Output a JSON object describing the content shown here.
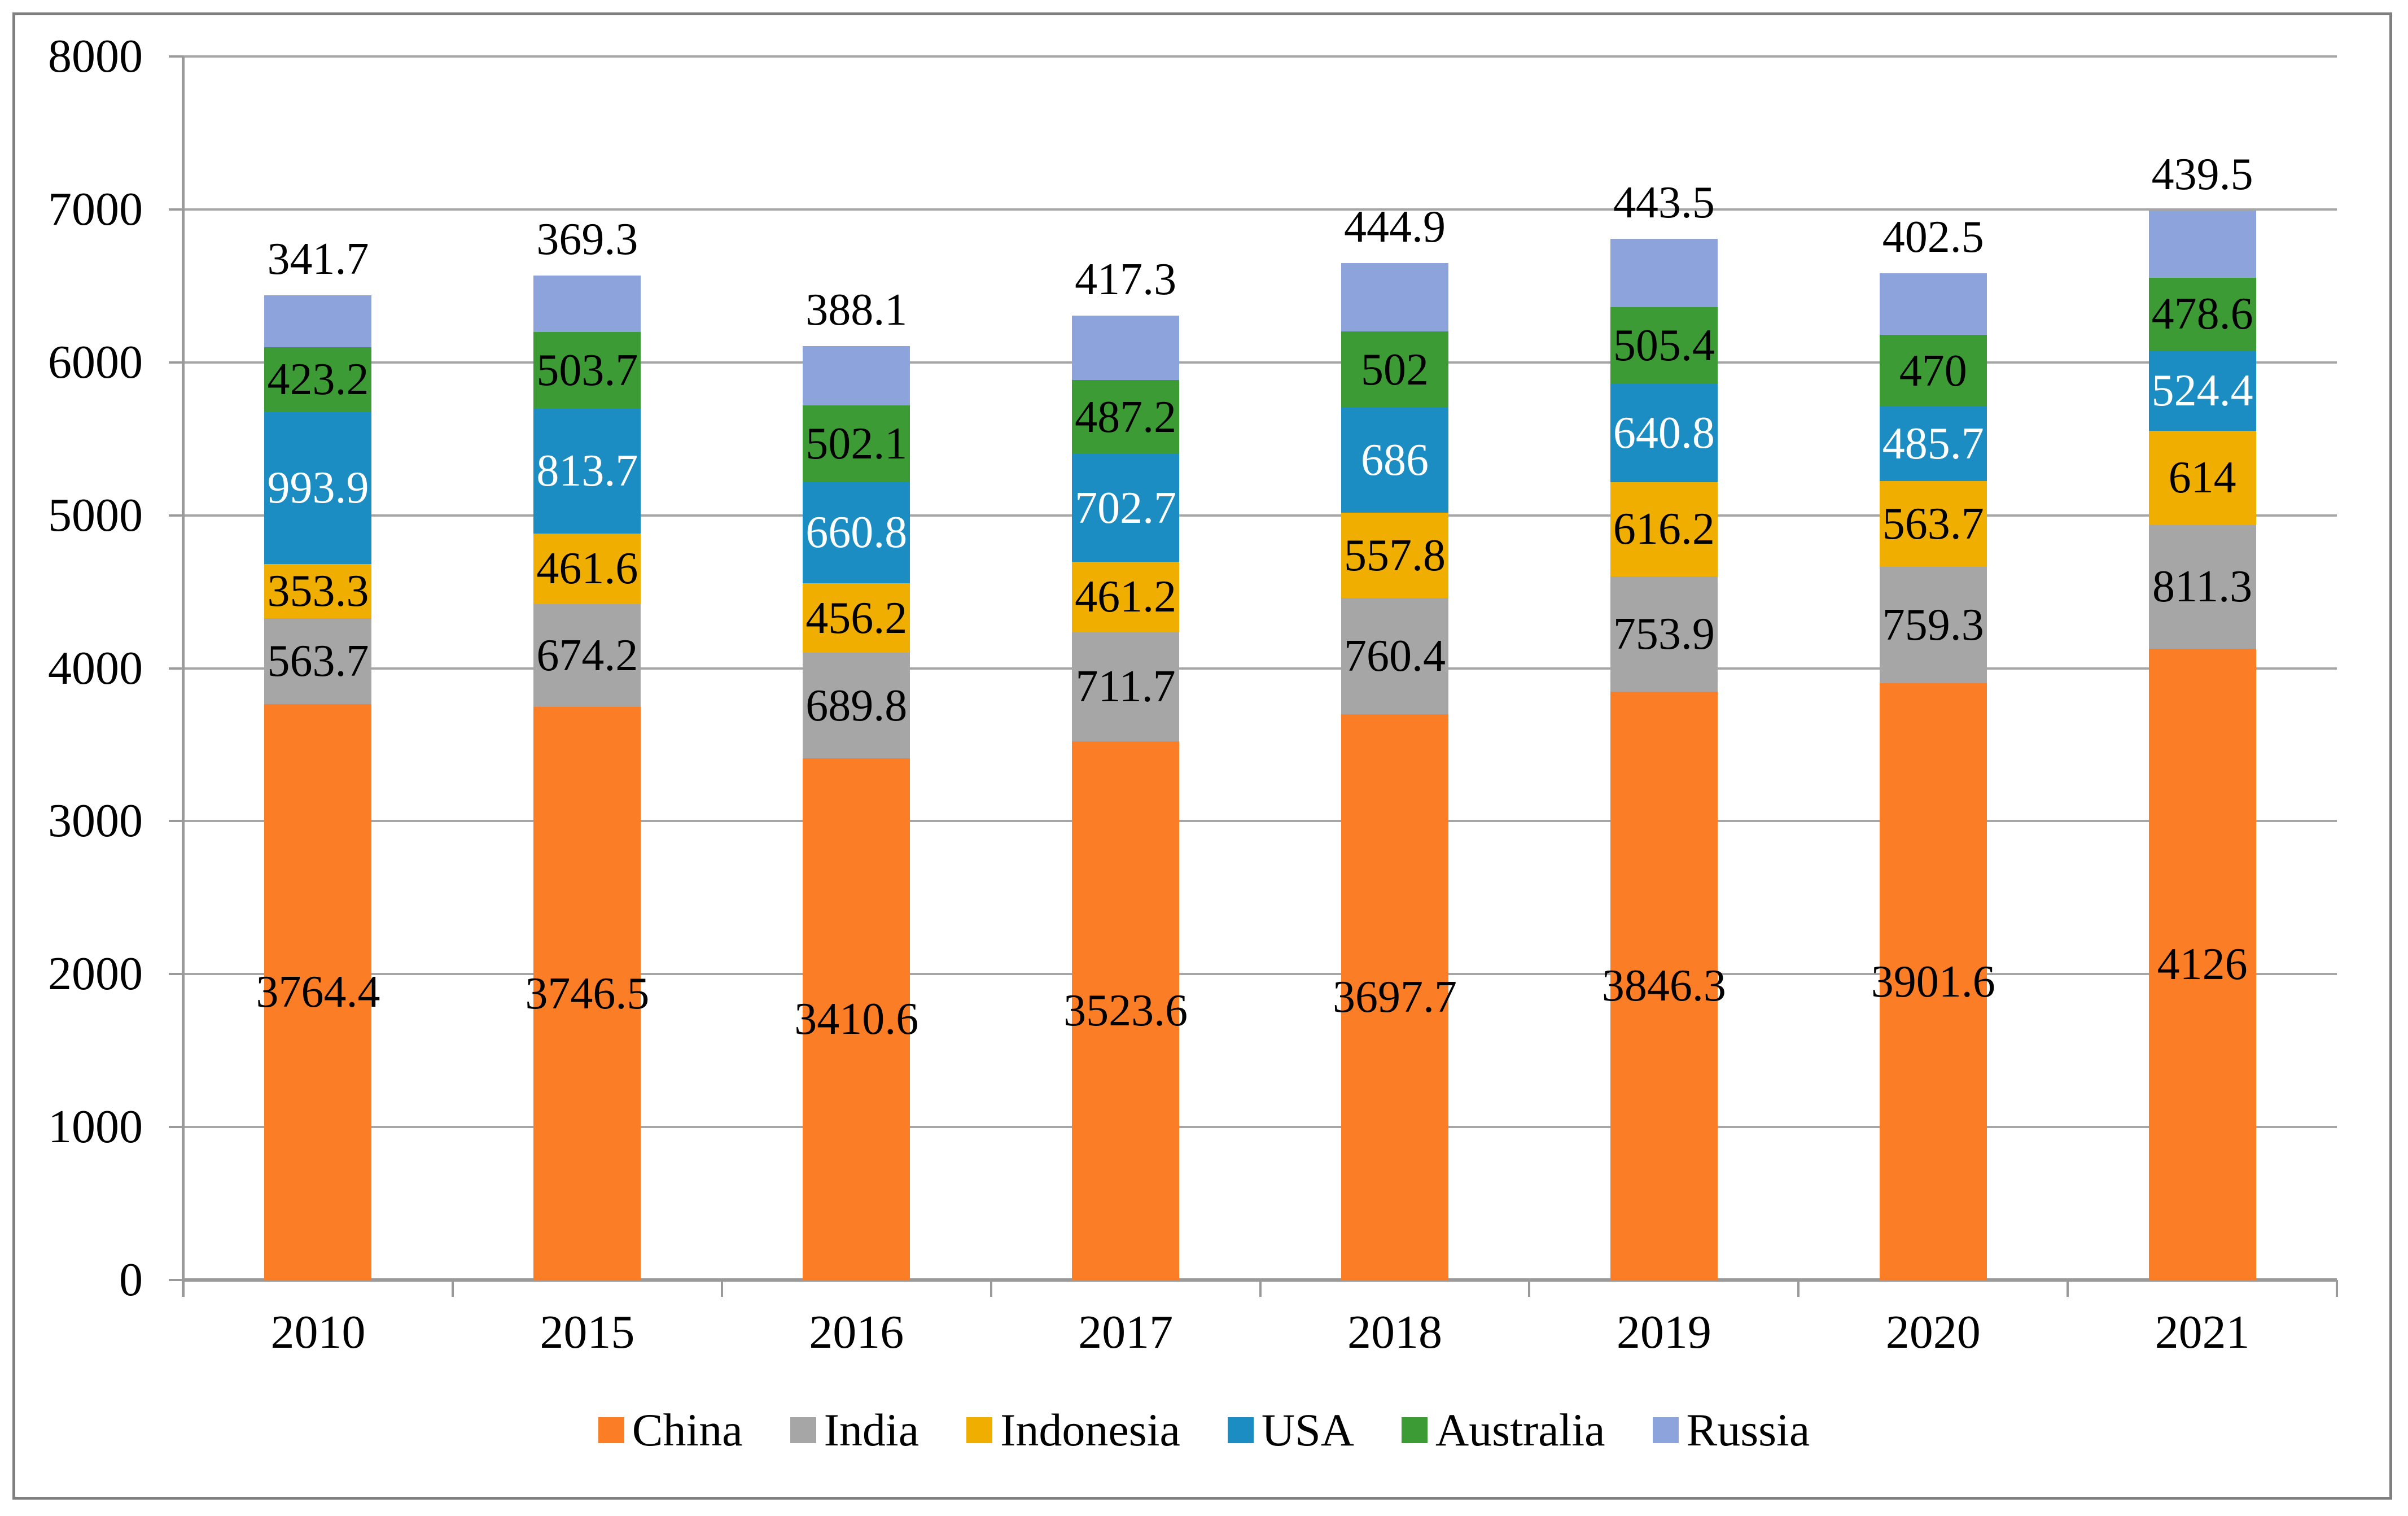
{
  "figure": {
    "background": "#FFFFFF",
    "border_color": "#7F7F7F"
  },
  "chart_data": {
    "type": "bar",
    "stacked": true,
    "title": "",
    "xlabel": "",
    "ylabel": "",
    "categories": [
      "2010",
      "2015",
      "2016",
      "2017",
      "2018",
      "2019",
      "2020",
      "2021"
    ],
    "series": [
      {
        "name": "China",
        "color": "#FB7D26",
        "label_color": "#000000",
        "values": [
          3764.4,
          3746.5,
          3410.6,
          3523.6,
          3697.7,
          3846.3,
          3901.6,
          4126
        ]
      },
      {
        "name": "India",
        "color": "#A6A6A6",
        "label_color": "#000000",
        "values": [
          563.7,
          674.2,
          689.8,
          711.7,
          760.4,
          753.9,
          759.3,
          811.3
        ]
      },
      {
        "name": "Indonesia",
        "color": "#F0AF00",
        "label_color": "#000000",
        "values": [
          353.3,
          461.6,
          456.2,
          461.2,
          557.8,
          616.2,
          563.7,
          614
        ]
      },
      {
        "name": "USA",
        "color": "#1B8DC3",
        "label_color": "#FFFFFF",
        "values": [
          993.9,
          813.7,
          660.8,
          702.7,
          686,
          640.8,
          485.7,
          524.4
        ]
      },
      {
        "name": "Australia",
        "color": "#3D9B35",
        "label_color": "#000000",
        "values": [
          423.2,
          503.7,
          502.1,
          487.2,
          502,
          505.4,
          470,
          478.6
        ]
      },
      {
        "name": "Russia",
        "color": "#8CA3DB",
        "label_color": "#000000",
        "values": [
          341.7,
          369.3,
          388.1,
          417.3,
          444.9,
          443.5,
          402.5,
          439.5
        ]
      }
    ],
    "ylim": [
      0,
      8000
    ],
    "ytick_step": 1000,
    "ytick_labels": [
      "0",
      "1000",
      "2000",
      "3000",
      "4000",
      "5000",
      "6000",
      "7000",
      "8000"
    ],
    "grid": true,
    "gridline_color": "#A6A6A6",
    "legend_position": "bottom",
    "top_series_labels_outside": true,
    "data_labels": true
  }
}
